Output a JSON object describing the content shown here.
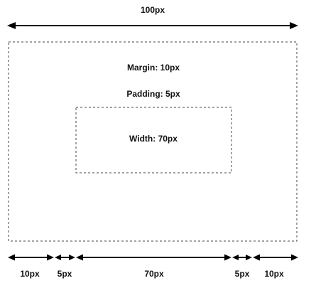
{
  "title": "100px",
  "outer_box": {
    "margin_label": "Margin: 10px",
    "padding_label": "Padding: 5px"
  },
  "inner_box": {
    "width_label": "Width: 70px"
  },
  "dimensions": {
    "left_margin": "10px",
    "left_padding": "5px",
    "content": "70px",
    "right_padding": "5px",
    "right_margin": "10px"
  },
  "colors": {
    "line": "#000000",
    "dash": "#444444",
    "text": "#111111",
    "background": "#ffffff"
  }
}
